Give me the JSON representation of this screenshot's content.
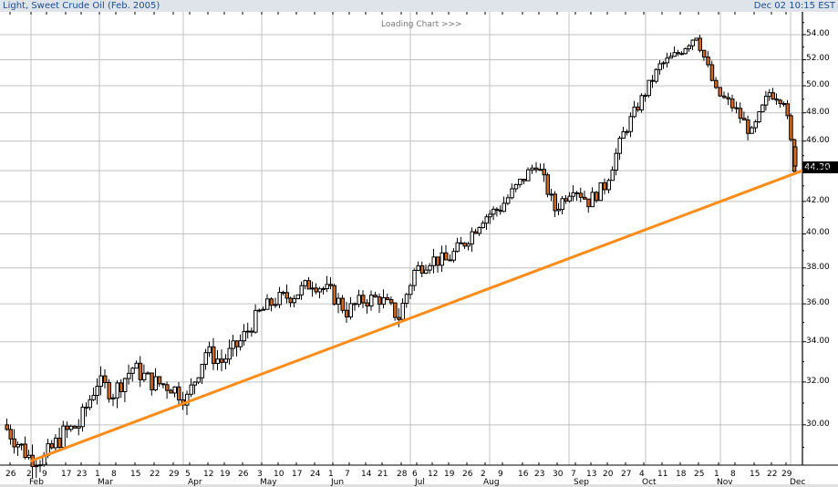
{
  "header": {
    "title": "Light, Sweet Crude Oil (Feb. 2005)",
    "timestamp": "Dec 02 10:15 EST"
  },
  "status": {
    "loading_text": "Loading Chart >>>"
  },
  "last_price_label": "44.30",
  "colors": {
    "down_candle": "#d2691e",
    "up_candle": "#ffffff",
    "trendline": "#ff8c1a",
    "grid": "#c0c0c0",
    "title_text": "#1a4f8f",
    "title_bg": "#dfe3ea"
  },
  "chart_data": {
    "type": "candlestick",
    "title": "Light, Sweet Crude Oil (Feb. 2005)",
    "xlabel": "",
    "ylabel": "",
    "y_scale": "log",
    "ylim": [
      28.3,
      55
    ],
    "y_ticks": [
      "30.00",
      "32.00",
      "34.00",
      "36.00",
      "38.00",
      "40.00",
      "42.00",
      "44.00",
      "46.00",
      "48.00",
      "50.00",
      "52.00",
      "54.00"
    ],
    "x_day_ticks": [
      "26",
      "2",
      "9",
      "17",
      "23",
      "1",
      "8",
      "15",
      "22",
      "29",
      "5",
      "12",
      "19",
      "26",
      "3",
      "10",
      "17",
      "24",
      "1",
      "7",
      "14",
      "21",
      "28",
      "6",
      "12",
      "19",
      "26",
      "2",
      "9",
      "16",
      "23",
      "30",
      "7",
      "13",
      "20",
      "27",
      "4",
      "11",
      "18",
      "25",
      "1",
      "8",
      "15",
      "22",
      "29"
    ],
    "x_month_labels": [
      "Feb",
      "Mar",
      "Apr",
      "May",
      "Jun",
      "Jul",
      "Aug",
      "Sep",
      "Oct",
      "Nov",
      "Dec"
    ],
    "last_price": 44.3,
    "grid": true,
    "legend": "none",
    "trendline": {
      "start": {
        "date": "Feb 2",
        "price": 28.4
      },
      "end": {
        "date": "Dec 2",
        "price": 44.0
      }
    },
    "approx_weekly_closes": [
      {
        "date": "Jan 26",
        "price": 30.0
      },
      {
        "date": "Feb 2",
        "price": 28.6
      },
      {
        "date": "Feb 9",
        "price": 28.5
      },
      {
        "date": "Feb 17",
        "price": 29.6
      },
      {
        "date": "Feb 23",
        "price": 30.0
      },
      {
        "date": "Mar 1",
        "price": 32.0
      },
      {
        "date": "Mar 8",
        "price": 31.5
      },
      {
        "date": "Mar 15",
        "price": 32.7
      },
      {
        "date": "Mar 22",
        "price": 32.0
      },
      {
        "date": "Mar 29",
        "price": 31.8
      },
      {
        "date": "Apr 5",
        "price": 31.2
      },
      {
        "date": "Apr 12",
        "price": 33.5
      },
      {
        "date": "Apr 19",
        "price": 33.0
      },
      {
        "date": "Apr 26",
        "price": 34.0
      },
      {
        "date": "May 3",
        "price": 35.5
      },
      {
        "date": "May 10",
        "price": 36.2
      },
      {
        "date": "May 17",
        "price": 36.5
      },
      {
        "date": "May 24",
        "price": 37.2
      },
      {
        "date": "Jun 1",
        "price": 36.6
      },
      {
        "date": "Jun 7",
        "price": 35.6
      },
      {
        "date": "Jun 14",
        "price": 36.2
      },
      {
        "date": "Jun 21",
        "price": 36.3
      },
      {
        "date": "Jun 28",
        "price": 35.3
      },
      {
        "date": "Jul 6",
        "price": 37.8
      },
      {
        "date": "Jul 12",
        "price": 38.5
      },
      {
        "date": "Jul 19",
        "price": 38.4
      },
      {
        "date": "Jul 26",
        "price": 39.5
      },
      {
        "date": "Aug 2",
        "price": 41.0
      },
      {
        "date": "Aug 9",
        "price": 41.6
      },
      {
        "date": "Aug 16",
        "price": 43.2
      },
      {
        "date": "Aug 23",
        "price": 44.5
      },
      {
        "date": "Aug 30",
        "price": 41.5
      },
      {
        "date": "Sep 7",
        "price": 43.0
      },
      {
        "date": "Sep 13",
        "price": 42.0
      },
      {
        "date": "Sep 20",
        "price": 43.0
      },
      {
        "date": "Sep 27",
        "price": 46.5
      },
      {
        "date": "Oct 4",
        "price": 49.0
      },
      {
        "date": "Oct 11",
        "price": 51.5
      },
      {
        "date": "Oct 18",
        "price": 52.5
      },
      {
        "date": "Oct 25",
        "price": 54.0
      },
      {
        "date": "Nov 1",
        "price": 49.5
      },
      {
        "date": "Nov 8",
        "price": 48.5
      },
      {
        "date": "Nov 15",
        "price": 46.5
      },
      {
        "date": "Nov 22",
        "price": 49.5
      },
      {
        "date": "Nov 29",
        "price": 49.0
      },
      {
        "date": "Dec 2",
        "price": 44.3
      }
    ]
  }
}
